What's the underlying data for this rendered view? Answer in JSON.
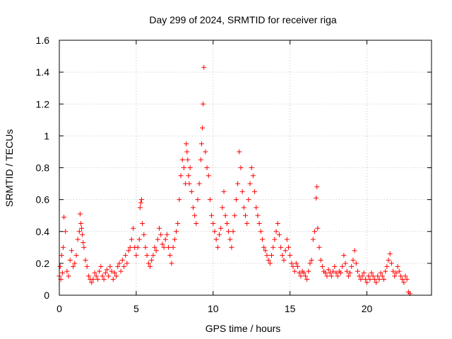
{
  "chart_data": {
    "type": "scatter",
    "title": "Day 299 of 2024, SRMTID for receiver riga",
    "xlabel": "GPS time / hours",
    "ylabel": "SRMTID / TECUs",
    "xlim": [
      0,
      24.2
    ],
    "ylim": [
      0,
      1.6
    ],
    "xticks": [
      0,
      5,
      10,
      15,
      20
    ],
    "xtick_labels": [
      "0",
      "5",
      "10",
      "15",
      "20"
    ],
    "yticks": [
      0,
      0.2,
      0.4,
      0.6,
      0.8,
      1,
      1.2,
      1.4,
      1.6
    ],
    "ytick_labels": [
      "0",
      "0.2",
      "0.4",
      "0.6",
      "0.8",
      "1",
      "1.2",
      "1.4",
      "1.6"
    ],
    "grid": true,
    "marker": "plus",
    "color": "#ff0000",
    "series": [
      {
        "name": "SRMTID",
        "x": [
          0.0,
          0.05,
          0.1,
          0.15,
          0.2,
          0.25,
          0.3,
          0.4,
          0.5,
          0.6,
          0.7,
          0.8,
          0.9,
          1.0,
          1.1,
          1.2,
          1.3,
          1.35,
          1.4,
          1.45,
          1.5,
          1.55,
          1.6,
          1.7,
          1.8,
          1.9,
          2.0,
          2.1,
          2.2,
          2.3,
          2.4,
          2.5,
          2.6,
          2.7,
          2.8,
          2.9,
          3.0,
          3.1,
          3.2,
          3.3,
          3.4,
          3.5,
          3.6,
          3.7,
          3.8,
          3.9,
          4.0,
          4.1,
          4.2,
          4.3,
          4.4,
          4.5,
          4.6,
          4.7,
          4.8,
          4.9,
          5.0,
          5.1,
          5.2,
          5.25,
          5.3,
          5.35,
          5.4,
          5.5,
          5.6,
          5.7,
          5.8,
          5.9,
          6.0,
          6.1,
          6.2,
          6.3,
          6.4,
          6.5,
          6.6,
          6.7,
          6.8,
          6.9,
          7.0,
          7.1,
          7.2,
          7.3,
          7.4,
          7.5,
          7.6,
          7.7,
          7.8,
          7.9,
          8.0,
          8.1,
          8.2,
          8.25,
          8.3,
          8.35,
          8.4,
          8.45,
          8.5,
          8.6,
          8.7,
          8.8,
          8.9,
          9.0,
          9.1,
          9.2,
          9.25,
          9.3,
          9.35,
          9.4,
          9.5,
          9.6,
          9.7,
          9.8,
          9.9,
          10.0,
          10.1,
          10.2,
          10.3,
          10.4,
          10.5,
          10.6,
          10.7,
          10.8,
          10.9,
          11.0,
          11.1,
          11.2,
          11.3,
          11.4,
          11.5,
          11.6,
          11.7,
          11.8,
          11.9,
          12.0,
          12.1,
          12.2,
          12.3,
          12.4,
          12.5,
          12.6,
          12.7,
          12.8,
          12.9,
          13.0,
          13.1,
          13.2,
          13.3,
          13.4,
          13.5,
          13.6,
          13.7,
          13.8,
          13.9,
          14.0,
          14.1,
          14.2,
          14.3,
          14.4,
          14.5,
          14.6,
          14.7,
          14.8,
          14.9,
          15.0,
          15.1,
          15.2,
          15.3,
          15.4,
          15.5,
          15.6,
          15.7,
          15.8,
          15.9,
          16.0,
          16.1,
          16.2,
          16.3,
          16.4,
          16.5,
          16.6,
          16.7,
          16.75,
          16.8,
          16.9,
          17.0,
          17.1,
          17.2,
          17.3,
          17.4,
          17.5,
          17.6,
          17.7,
          17.8,
          17.9,
          18.0,
          18.1,
          18.2,
          18.3,
          18.4,
          18.5,
          18.6,
          18.7,
          18.8,
          18.9,
          19.0,
          19.1,
          19.2,
          19.3,
          19.4,
          19.5,
          19.6,
          19.7,
          19.8,
          19.9,
          20.0,
          20.1,
          20.2,
          20.3,
          20.4,
          20.5,
          20.6,
          20.7,
          20.8,
          20.9,
          21.0,
          21.1,
          21.2,
          21.3,
          21.4,
          21.5,
          21.6,
          21.7,
          21.8,
          21.9,
          22.0,
          22.1,
          22.2,
          22.3,
          22.4,
          22.5,
          22.6,
          22.7,
          22.8
        ],
        "y": [
          0.12,
          0.18,
          0.1,
          0.25,
          0.14,
          0.3,
          0.49,
          0.4,
          0.15,
          0.12,
          0.22,
          0.28,
          0.18,
          0.2,
          0.25,
          0.35,
          0.4,
          0.51,
          0.45,
          0.42,
          0.38,
          0.33,
          0.3,
          0.22,
          0.18,
          0.12,
          0.1,
          0.08,
          0.1,
          0.14,
          0.12,
          0.1,
          0.15,
          0.18,
          0.12,
          0.1,
          0.14,
          0.16,
          0.12,
          0.18,
          0.15,
          0.1,
          0.14,
          0.12,
          0.18,
          0.2,
          0.15,
          0.22,
          0.18,
          0.25,
          0.2,
          0.28,
          0.3,
          0.35,
          0.42,
          0.3,
          0.25,
          0.3,
          0.35,
          0.55,
          0.58,
          0.6,
          0.45,
          0.38,
          0.3,
          0.25,
          0.2,
          0.18,
          0.22,
          0.25,
          0.3,
          0.28,
          0.35,
          0.42,
          0.38,
          0.32,
          0.3,
          0.35,
          0.38,
          0.3,
          0.25,
          0.2,
          0.3,
          0.35,
          0.4,
          0.45,
          0.6,
          0.75,
          0.85,
          0.8,
          0.7,
          0.95,
          0.9,
          0.85,
          0.75,
          0.7,
          0.8,
          0.65,
          0.55,
          0.5,
          0.45,
          0.6,
          0.7,
          0.85,
          0.95,
          1.05,
          1.2,
          1.43,
          0.9,
          0.8,
          0.75,
          0.6,
          0.5,
          0.45,
          0.4,
          0.35,
          0.3,
          0.38,
          0.42,
          0.55,
          0.65,
          0.5,
          0.45,
          0.4,
          0.35,
          0.3,
          0.4,
          0.5,
          0.6,
          0.7,
          0.9,
          0.8,
          0.65,
          0.55,
          0.5,
          0.45,
          0.6,
          0.7,
          0.8,
          0.75,
          0.65,
          0.55,
          0.5,
          0.45,
          0.4,
          0.35,
          0.3,
          0.28,
          0.25,
          0.22,
          0.2,
          0.25,
          0.3,
          0.35,
          0.4,
          0.45,
          0.38,
          0.3,
          0.25,
          0.22,
          0.28,
          0.35,
          0.3,
          0.25,
          0.2,
          0.18,
          0.15,
          0.2,
          0.18,
          0.14,
          0.12,
          0.15,
          0.14,
          0.12,
          0.1,
          0.15,
          0.2,
          0.22,
          0.35,
          0.4,
          0.61,
          0.68,
          0.42,
          0.3,
          0.22,
          0.18,
          0.15,
          0.14,
          0.12,
          0.16,
          0.14,
          0.12,
          0.15,
          0.18,
          0.14,
          0.12,
          0.15,
          0.14,
          0.18,
          0.25,
          0.2,
          0.15,
          0.12,
          0.14,
          0.18,
          0.22,
          0.28,
          0.2,
          0.15,
          0.12,
          0.1,
          0.12,
          0.14,
          0.1,
          0.08,
          0.12,
          0.1,
          0.14,
          0.12,
          0.1,
          0.08,
          0.12,
          0.1,
          0.14,
          0.12,
          0.1,
          0.15,
          0.18,
          0.22,
          0.26,
          0.2,
          0.15,
          0.12,
          0.14,
          0.18,
          0.15,
          0.12,
          0.1,
          0.08,
          0.12,
          0.1,
          0.02,
          0.01
        ]
      }
    ]
  }
}
